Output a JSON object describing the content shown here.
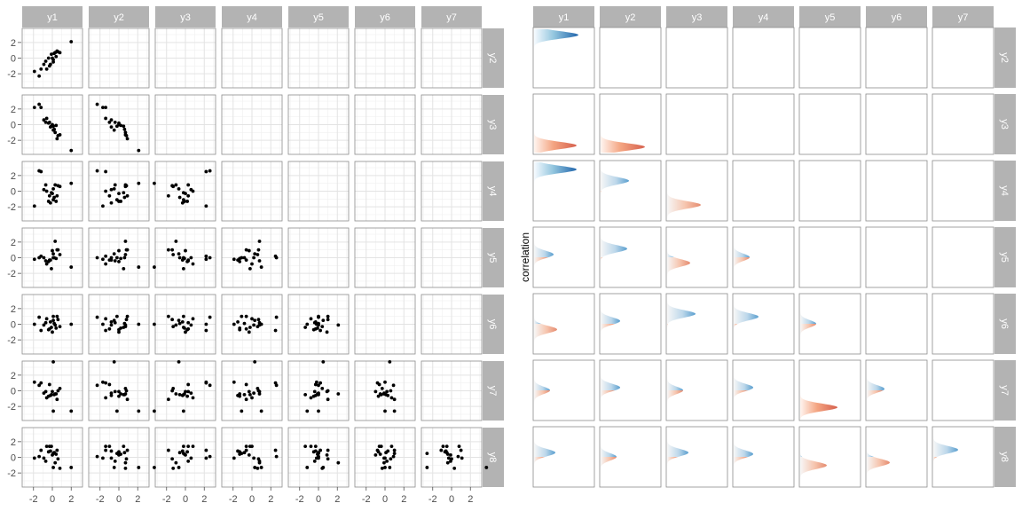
{
  "chart_data": [
    {
      "type": "scatter",
      "layout": "lower-triangle facet grid",
      "col_strips": [
        "y1",
        "y2",
        "y3",
        "y4",
        "y5",
        "y6",
        "y7"
      ],
      "row_strips": [
        "y2",
        "y3",
        "y4",
        "y5",
        "y6",
        "y7",
        "y8"
      ],
      "x_ticks": [
        -2,
        0,
        2
      ],
      "y_ticks": [
        -2,
        0,
        2
      ],
      "xlim": [
        -3.2,
        3.2
      ],
      "ylim": [
        -3.8,
        3.8
      ],
      "grid": true,
      "data": {
        "y1": [
          -0.1,
          -0.7,
          0.5,
          -1.2,
          -0.3,
          0.1,
          0.3,
          -0.2,
          2.0,
          0.8,
          -0.6,
          0.0,
          -1.4,
          0.2,
          -1.9,
          0.6,
          -0.4,
          0.1,
          0.4,
          -0.9
        ],
        "y2": [
          0.5,
          -0.4,
          0.9,
          -1.4,
          -1.0,
          -0.2,
          0.7,
          -0.8,
          2.1,
          0.7,
          -1.4,
          0.0,
          -2.3,
          0.6,
          -1.7,
          0.8,
          0.0,
          -0.5,
          0.2,
          -0.8
        ],
        "y3": [
          -0.2,
          0.3,
          -1.8,
          2.2,
          0.3,
          -0.2,
          -1.0,
          -0.3,
          -3.3,
          -1.3,
          0.8,
          0.0,
          2.6,
          -0.6,
          2.2,
          -1.4,
          0.2,
          -0.7,
          -0.1,
          0.6
        ],
        "y4": [
          -0.2,
          0.8,
          -0.6,
          2.5,
          -0.6,
          -1.1,
          0.8,
          -1.5,
          1.0,
          0.6,
          0.0,
          -0.3,
          2.6,
          -0.8,
          -1.9,
          0.7,
          -1.3,
          0.3,
          -1.3,
          0.2
        ],
        "y5": [
          -1.4,
          -0.4,
          1.0,
          0.2,
          -0.3,
          0.0,
          2.1,
          -0.3,
          -1.2,
          0.4,
          -0.8,
          0.9,
          0.0,
          0.0,
          -0.2,
          1.0,
          -0.5,
          0.5,
          -0.1,
          0.0
        ],
        "y6": [
          -0.4,
          0.2,
          1.0,
          -0.8,
          -0.6,
          1.0,
          -0.1,
          0.3,
          0.0,
          -0.3,
          0.7,
          -1.0,
          0.9,
          0.1,
          0.0,
          0.6,
          -0.7,
          0.5,
          -0.5,
          -0.1
        ],
        "y7": [
          -0.5,
          -0.1,
          -1.1,
          1.0,
          0.8,
          -2.6,
          -0.4,
          -0.6,
          -2.6,
          0.3,
          -0.9,
          -0.1,
          0.7,
          -0.5,
          1.1,
          0.0,
          -0.7,
          3.7,
          -0.4,
          -0.3
        ],
        "y8": [
          1.4,
          -0.5,
          0.9,
          0.9,
          1.4,
          0.5,
          -0.7,
          0.8,
          -1.3,
          -1.4,
          1.4,
          0.3,
          0.1,
          0.6,
          -0.1,
          -0.2,
          0.7,
          -1.3,
          0.4,
          -0.1
        ]
      }
    },
    {
      "type": "area",
      "layout": "lower-triangle facet grid",
      "col_strips": [
        "y1",
        "y2",
        "y3",
        "y4",
        "y5",
        "y6",
        "y7"
      ],
      "row_strips": [
        "y2",
        "y3",
        "y4",
        "y5",
        "y6",
        "y7",
        "y8"
      ],
      "ylabel": "correlation",
      "ylim": [
        -1,
        1
      ],
      "orientation": "horizontal densities",
      "colors": {
        "positive": "#2166ac",
        "negative": "#d6604d",
        "neutral": "#f7f7f7"
      },
      "correlations": [
        {
          "pair": [
            "y1",
            "y2"
          ],
          "r": 0.8
        },
        {
          "pair": [
            "y1",
            "y3"
          ],
          "r": -0.75
        },
        {
          "pair": [
            "y2",
            "y3"
          ],
          "r": -0.8
        },
        {
          "pair": [
            "y1",
            "y4"
          ],
          "r": 0.75
        },
        {
          "pair": [
            "y2",
            "y4"
          ],
          "r": 0.35
        },
        {
          "pair": [
            "y3",
            "y4"
          ],
          "r": -0.5
        },
        {
          "pair": [
            "y1",
            "y5"
          ],
          "r": 0.1
        },
        {
          "pair": [
            "y2",
            "y5"
          ],
          "r": 0.3
        },
        {
          "pair": [
            "y3",
            "y5"
          ],
          "r": -0.2
        },
        {
          "pair": [
            "y4",
            "y5"
          ],
          "r": 0.0
        },
        {
          "pair": [
            "y1",
            "y6"
          ],
          "r": -0.2
        },
        {
          "pair": [
            "y2",
            "y6"
          ],
          "r": 0.1
        },
        {
          "pair": [
            "y3",
            "y6"
          ],
          "r": 0.35
        },
        {
          "pair": [
            "y4",
            "y6"
          ],
          "r": 0.25
        },
        {
          "pair": [
            "y5",
            "y6"
          ],
          "r": 0.0
        },
        {
          "pair": [
            "y1",
            "y7"
          ],
          "r": 0.0
        },
        {
          "pair": [
            "y2",
            "y7"
          ],
          "r": 0.1
        },
        {
          "pair": [
            "y3",
            "y7"
          ],
          "r": 0.0
        },
        {
          "pair": [
            "y4",
            "y7"
          ],
          "r": 0.1
        },
        {
          "pair": [
            "y5",
            "y7"
          ],
          "r": -0.6
        },
        {
          "pair": [
            "y6",
            "y7"
          ],
          "r": 0.05
        },
        {
          "pair": [
            "y1",
            "y8"
          ],
          "r": 0.15
        },
        {
          "pair": [
            "y2",
            "y8"
          ],
          "r": 0.0
        },
        {
          "pair": [
            "y3",
            "y8"
          ],
          "r": 0.15
        },
        {
          "pair": [
            "y4",
            "y8"
          ],
          "r": 0.1
        },
        {
          "pair": [
            "y5",
            "y8"
          ],
          "r": -0.3
        },
        {
          "pair": [
            "y6",
            "y8"
          ],
          "r": -0.2
        },
        {
          "pair": [
            "y7",
            "y8"
          ],
          "r": 0.25
        }
      ]
    }
  ]
}
